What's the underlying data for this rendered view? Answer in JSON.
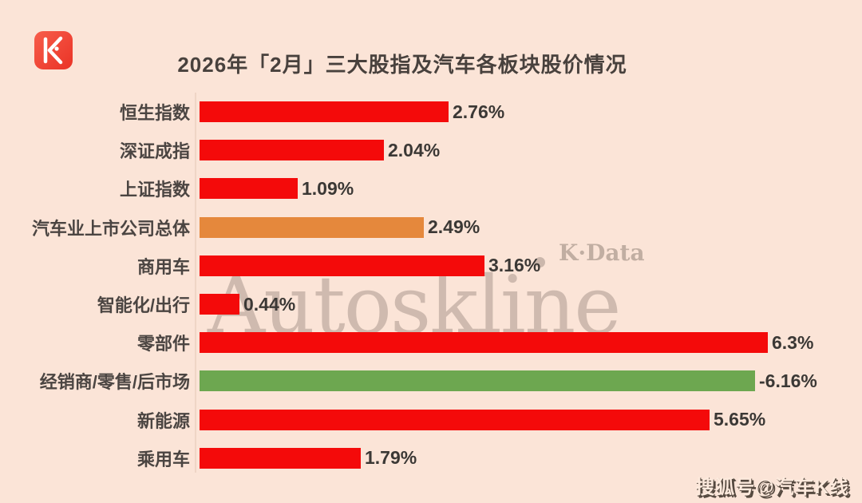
{
  "header": {
    "title": "2026年「2月」三大股指及汽车各板块股价情况",
    "logo_name": "autoskline-k-logo"
  },
  "chart_data": {
    "type": "bar",
    "orientation": "horizontal",
    "title": "2026年「2月」三大股指及汽车各板块股价情况",
    "categories": [
      "恒生指数",
      "深证成指",
      "上证指数",
      "汽车业上市公司总体",
      "商用车",
      "智能化/出行",
      "零部件",
      "经销商/零售/后市场",
      "新能源",
      "乘用车"
    ],
    "values": [
      2.76,
      2.04,
      1.09,
      2.49,
      3.16,
      0.44,
      6.3,
      -6.16,
      5.65,
      1.79
    ],
    "value_labels": [
      "2.76%",
      "2.04%",
      "1.09%",
      "2.49%",
      "3.16%",
      "0.44%",
      "6.3%",
      "-6.16%",
      "5.65%",
      "1.79%"
    ],
    "bar_colors": [
      "#f40a0a",
      "#f40a0a",
      "#f40a0a",
      "#e5883c",
      "#f40a0a",
      "#f40a0a",
      "#f40a0a",
      "#6da750",
      "#f40a0a",
      "#f40a0a"
    ],
    "xlim": [
      0,
      6.3
    ],
    "grid": false,
    "legend": false,
    "value_label_position": "end-of-bar"
  },
  "watermarks": {
    "brand_large": "Autoskline",
    "brand_small": "K·Data",
    "sohu_badge": "搜狐号@汽车K线"
  },
  "colors": {
    "background": "#fbe4d7",
    "positive_red": "#f40a0a",
    "overall_orange": "#e5883c",
    "negative_green": "#6da750",
    "text_dark": "#48413d",
    "watermark_gray": "#918177"
  }
}
